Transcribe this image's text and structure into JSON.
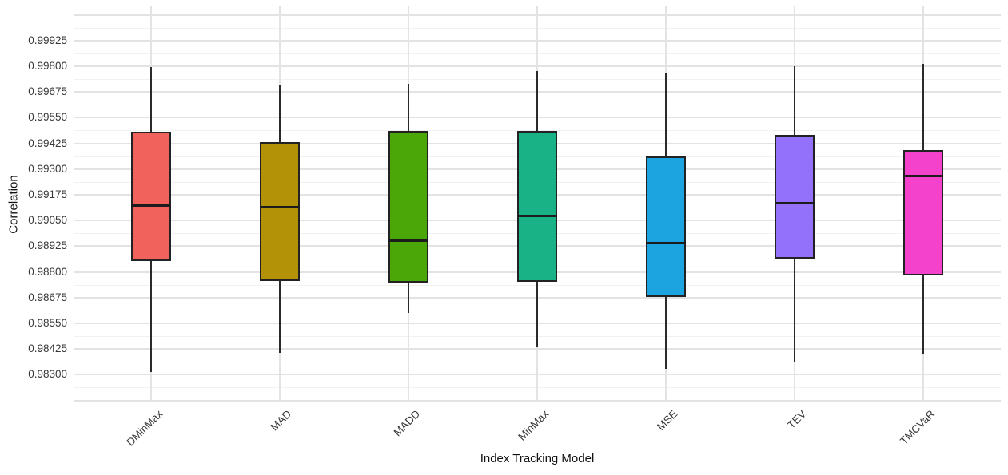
{
  "chart_data": {
    "type": "boxplot",
    "title": "",
    "xlabel": "Index Tracking Model",
    "ylabel": "Correlation",
    "legend_position": "none",
    "grid": "major and minor horizontal gridlines, vertical major gridline at each category",
    "ylim": [
      0.983,
      0.99925
    ],
    "y_tick_step": 0.00125,
    "y_tick_labels": [
      "0.99925",
      "0.99800",
      "0.99675",
      "0.99550",
      "0.99425",
      "0.99300",
      "0.99175",
      "0.99050",
      "0.98925",
      "0.98800",
      "0.98675",
      "0.98550",
      "0.98425",
      "0.98300"
    ],
    "categories": [
      "DMinMax",
      "MAD",
      "MADD",
      "MinMax",
      "MSE",
      "TEV",
      "TMCVaR"
    ],
    "box_outline_color": "#222222",
    "boxes": [
      {
        "label": "DMinMax",
        "color": "#F2625C",
        "min": 0.98312,
        "q1": 0.98852,
        "median": 0.99124,
        "q3": 0.99481,
        "max": 0.99795
      },
      {
        "label": "MAD",
        "color": "#B39207",
        "min": 0.98405,
        "q1": 0.98756,
        "median": 0.99113,
        "q3": 0.99432,
        "max": 0.99706
      },
      {
        "label": "MADD",
        "color": "#4AA707",
        "min": 0.98599,
        "q1": 0.98748,
        "median": 0.98953,
        "q3": 0.99484,
        "max": 0.99714
      },
      {
        "label": "MinMax",
        "color": "#19B287",
        "min": 0.98433,
        "q1": 0.9875,
        "median": 0.99073,
        "q3": 0.99486,
        "max": 0.99777
      },
      {
        "label": "MSE",
        "color": "#1CA4E0",
        "min": 0.9833,
        "q1": 0.98677,
        "median": 0.98941,
        "q3": 0.99362,
        "max": 0.99768
      },
      {
        "label": "TEV",
        "color": "#9471FA",
        "min": 0.98362,
        "q1": 0.98863,
        "median": 0.99132,
        "q3": 0.99466,
        "max": 0.99798
      },
      {
        "label": "TMCVaR",
        "color": "#F442CD",
        "min": 0.98401,
        "q1": 0.98783,
        "median": 0.99266,
        "q3": 0.99391,
        "max": 0.99812
      }
    ]
  }
}
